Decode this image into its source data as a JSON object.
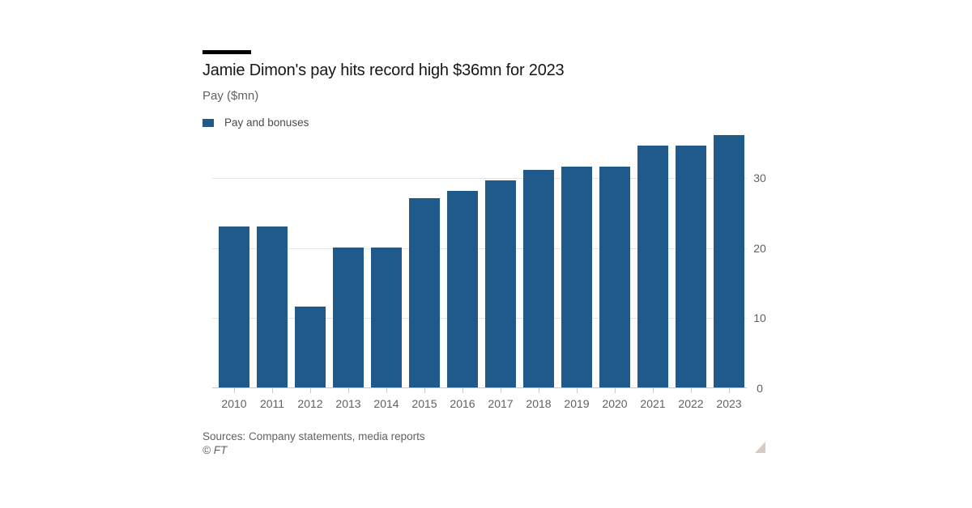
{
  "header": {
    "title": "Jamie Dimon's pay hits record high $36mn for 2023",
    "subtitle": "Pay ($mn)"
  },
  "legend": {
    "label": "Pay and bonuses",
    "swatch_color": "#1f5a8b"
  },
  "chart_data": {
    "type": "bar",
    "title": "Jamie Dimon's pay hits record high $36mn for 2023",
    "ylabel": "Pay ($mn)",
    "xlabel": "",
    "categories": [
      "2010",
      "2011",
      "2012",
      "2013",
      "2014",
      "2015",
      "2016",
      "2017",
      "2018",
      "2019",
      "2020",
      "2021",
      "2022",
      "2023"
    ],
    "series": [
      {
        "name": "Pay and bonuses",
        "values": [
          23,
          23,
          11.5,
          20,
          20,
          27,
          28,
          29.5,
          31,
          31.5,
          31.5,
          34.5,
          34.5,
          36
        ]
      }
    ],
    "ylim": [
      0,
      36.9
    ],
    "yticks": [
      0,
      10,
      20,
      30
    ],
    "ytick_side": "right",
    "grid": "horizontal",
    "bar_color": "#1f5a8b",
    "legend_position": "top-left"
  },
  "footer": {
    "source": "Sources: Company statements, media reports",
    "copyright": "© FT"
  },
  "colors": {
    "bar": "#1f5a8b",
    "title_text": "#181614",
    "muted_text": "#66605c",
    "gridline": "#e7e5e2",
    "axis": "#cbc7c2",
    "title_rule": "#000000",
    "background": "#ffffff"
  }
}
